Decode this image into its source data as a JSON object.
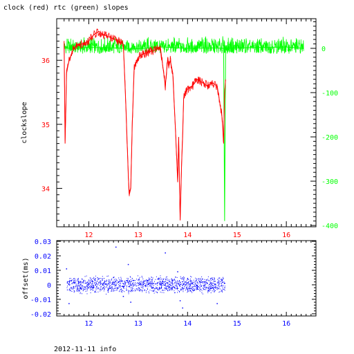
{
  "title": "clock (red) rtc (green) slopes",
  "footer": "2012-11-11 info",
  "colors": {
    "clock": "#ff0000",
    "rtc": "#00ff00",
    "offset": "#0000ff",
    "axis": "#000000"
  },
  "chart_data": [
    {
      "type": "line",
      "ylabel": "clockslope",
      "xlim": [
        11.35,
        16.6
      ],
      "ylim": [
        33.4,
        36.65
      ],
      "y2lim": [
        -403,
        67
      ],
      "xticks": [
        "12",
        "13",
        "14",
        "15",
        "16"
      ],
      "yticks": [
        "34",
        "35",
        "36"
      ],
      "y2ticks": [
        "-400",
        "-300",
        "-200",
        "-100",
        "0"
      ],
      "grid": false,
      "series": [
        {
          "name": "clock",
          "axis": "left",
          "x": [
            11.5,
            11.52,
            11.55,
            11.6,
            11.7,
            11.85,
            12.0,
            12.1,
            12.2,
            12.3,
            12.45,
            12.6,
            12.7,
            12.75,
            12.8,
            12.82,
            12.85,
            12.88,
            12.92,
            13.0,
            13.1,
            13.3,
            13.45,
            13.55,
            13.6,
            13.62,
            13.65,
            13.7,
            13.75,
            13.8,
            13.82,
            13.85,
            13.88,
            13.9,
            13.92,
            13.95,
            14.0,
            14.1,
            14.2,
            14.3,
            14.4,
            14.5,
            14.6,
            14.7,
            14.73,
            14.75,
            14.77
          ],
          "values": [
            36.3,
            34.7,
            35.8,
            36.0,
            36.2,
            36.25,
            36.3,
            36.4,
            36.45,
            36.4,
            36.35,
            36.3,
            36.25,
            35.3,
            34.2,
            33.9,
            34.0,
            35.0,
            35.9,
            36.05,
            36.1,
            36.15,
            36.2,
            35.6,
            36.05,
            35.9,
            36.0,
            35.8,
            35.0,
            34.1,
            34.8,
            33.5,
            34.4,
            34.8,
            35.4,
            35.5,
            35.55,
            35.6,
            35.7,
            35.65,
            35.6,
            35.65,
            35.6,
            35.1,
            34.7,
            35.5,
            35.7
          ]
        },
        {
          "name": "rtc",
          "axis": "right",
          "x": [
            11.5,
            12.0,
            12.5,
            13.0,
            13.5,
            14.0,
            14.5,
            14.73,
            14.75,
            14.77,
            15.0,
            15.5,
            16.0,
            16.35
          ],
          "values": [
            0,
            2,
            1,
            -1,
            3,
            0,
            1,
            0,
            -390,
            0,
            1,
            2,
            3,
            0
          ],
          "band": [
            -12,
            28
          ]
        }
      ]
    },
    {
      "type": "scatter",
      "name": "offset",
      "ylabel": "offset(ms)",
      "xlim": [
        11.35,
        16.6
      ],
      "ylim": [
        -0.0215,
        0.0305
      ],
      "xticks": [
        "12",
        "13",
        "14",
        "15",
        "16"
      ],
      "yticks": [
        "0.03",
        "0.02",
        "0.01",
        "0",
        "-0.01",
        "-0.02"
      ],
      "grid": false,
      "x": [
        11.55,
        11.6,
        11.7,
        11.8,
        11.9,
        12.0,
        12.1,
        12.2,
        12.3,
        12.4,
        12.5,
        12.55,
        12.6,
        12.7,
        12.8,
        12.85,
        12.9,
        13.0,
        13.1,
        13.2,
        13.3,
        13.4,
        13.5,
        13.55,
        13.6,
        13.7,
        13.8,
        13.85,
        13.9,
        14.0,
        14.1,
        14.2,
        14.3,
        14.4,
        14.5,
        14.6,
        14.7,
        14.75
      ],
      "values": [
        0.011,
        -0.013,
        0.002,
        -0.004,
        0.003,
        0.001,
        -0.002,
        0.004,
        0.001,
        -0.003,
        0.005,
        0.026,
        0.002,
        -0.008,
        0.014,
        -0.012,
        0.003,
        0.001,
        0.0,
        0.003,
        -0.002,
        0.004,
        0.001,
        0.022,
        -0.004,
        0.003,
        0.009,
        -0.011,
        -0.016,
        0.004,
        0.001,
        -0.003,
        0.002,
        0.001,
        -0.002,
        -0.013,
        0.003,
        0.001
      ]
    }
  ]
}
